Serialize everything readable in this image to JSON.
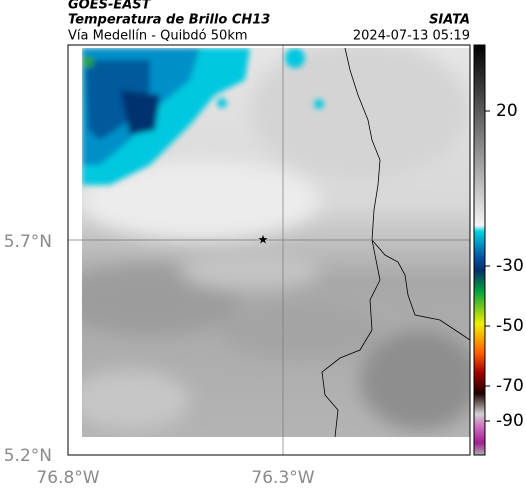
{
  "header": {
    "source": "GOES-EAST",
    "product": "Temperatura de Brillo CH13",
    "region": "Vía Medellín - Quibdó 50km",
    "agency": "SIATA",
    "timestamp": "2024-07-13 05:19"
  },
  "map": {
    "lat_labels": [
      "5.7°N",
      "5.2°N"
    ],
    "lon_labels": [
      "76.8°W",
      "76.3°W"
    ]
  },
  "colorbar": {
    "ticks": [
      20,
      -30,
      -50,
      -70,
      -90
    ]
  }
}
